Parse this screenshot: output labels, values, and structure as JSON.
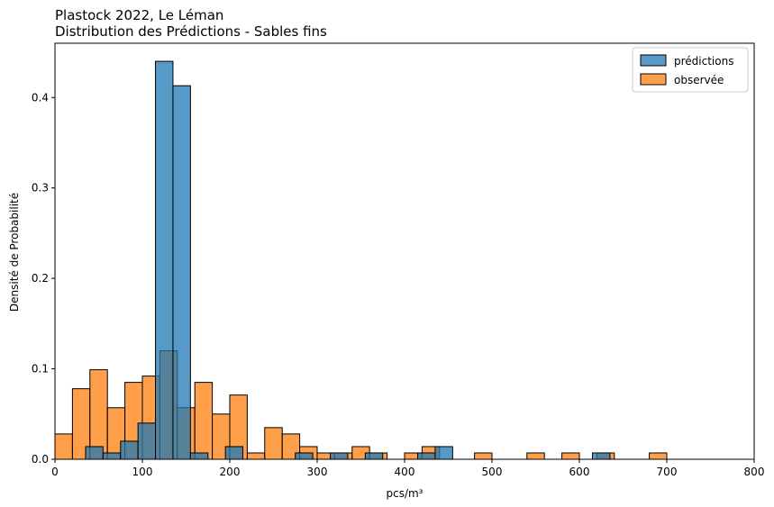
{
  "chart_data": {
    "type": "bar",
    "title_line1": "Plastock 2022, Le Léman",
    "title_line2": "Distribution des Prédictions - Sables fins",
    "xlabel": "pcs/m³",
    "ylabel": "Densité de Probabilité",
    "xlim": [
      0,
      800
    ],
    "ylim": [
      0,
      0.46
    ],
    "xticks": [
      0,
      100,
      200,
      300,
      400,
      500,
      600,
      700,
      800
    ],
    "yticks": [
      0.0,
      0.1,
      0.2,
      0.3,
      0.4
    ],
    "legend_position": "top-right",
    "series": [
      {
        "name": "observée",
        "color": "#ff7f0e",
        "bins": [
          {
            "x0": 0,
            "x1": 20,
            "y": 0.028
          },
          {
            "x0": 20,
            "x1": 40,
            "y": 0.078
          },
          {
            "x0": 40,
            "x1": 60,
            "y": 0.099
          },
          {
            "x0": 60,
            "x1": 80,
            "y": 0.057
          },
          {
            "x0": 80,
            "x1": 100,
            "y": 0.085
          },
          {
            "x0": 100,
            "x1": 120,
            "y": 0.092
          },
          {
            "x0": 120,
            "x1": 140,
            "y": 0.12
          },
          {
            "x0": 140,
            "x1": 160,
            "y": 0.057
          },
          {
            "x0": 160,
            "x1": 180,
            "y": 0.085
          },
          {
            "x0": 180,
            "x1": 200,
            "y": 0.05
          },
          {
            "x0": 200,
            "x1": 220,
            "y": 0.071
          },
          {
            "x0": 220,
            "x1": 240,
            "y": 0.007
          },
          {
            "x0": 240,
            "x1": 260,
            "y": 0.035
          },
          {
            "x0": 260,
            "x1": 280,
            "y": 0.028
          },
          {
            "x0": 280,
            "x1": 300,
            "y": 0.014
          },
          {
            "x0": 300,
            "x1": 320,
            "y": 0.007
          },
          {
            "x0": 320,
            "x1": 340,
            "y": 0.007
          },
          {
            "x0": 340,
            "x1": 360,
            "y": 0.014
          },
          {
            "x0": 360,
            "x1": 380,
            "y": 0.007
          },
          {
            "x0": 400,
            "x1": 420,
            "y": 0.007
          },
          {
            "x0": 420,
            "x1": 440,
            "y": 0.014
          },
          {
            "x0": 480,
            "x1": 500,
            "y": 0.007
          },
          {
            "x0": 540,
            "x1": 560,
            "y": 0.007
          },
          {
            "x0": 580,
            "x1": 600,
            "y": 0.007
          },
          {
            "x0": 620,
            "x1": 640,
            "y": 0.007
          },
          {
            "x0": 680,
            "x1": 700,
            "y": 0.007
          }
        ]
      },
      {
        "name": "prédictions",
        "color": "#1f77b4",
        "bins": [
          {
            "x0": 35,
            "x1": 55,
            "y": 0.014
          },
          {
            "x0": 55,
            "x1": 75,
            "y": 0.007
          },
          {
            "x0": 75,
            "x1": 95,
            "y": 0.02
          },
          {
            "x0": 95,
            "x1": 115,
            "y": 0.04
          },
          {
            "x0": 115,
            "x1": 135,
            "y": 0.44
          },
          {
            "x0": 135,
            "x1": 155,
            "y": 0.413
          },
          {
            "x0": 155,
            "x1": 175,
            "y": 0.007
          },
          {
            "x0": 195,
            "x1": 215,
            "y": 0.014
          },
          {
            "x0": 275,
            "x1": 295,
            "y": 0.007
          },
          {
            "x0": 315,
            "x1": 335,
            "y": 0.007
          },
          {
            "x0": 355,
            "x1": 375,
            "y": 0.007
          },
          {
            "x0": 415,
            "x1": 435,
            "y": 0.007
          },
          {
            "x0": 435,
            "x1": 455,
            "y": 0.014
          },
          {
            "x0": 615,
            "x1": 635,
            "y": 0.007
          }
        ]
      }
    ]
  }
}
